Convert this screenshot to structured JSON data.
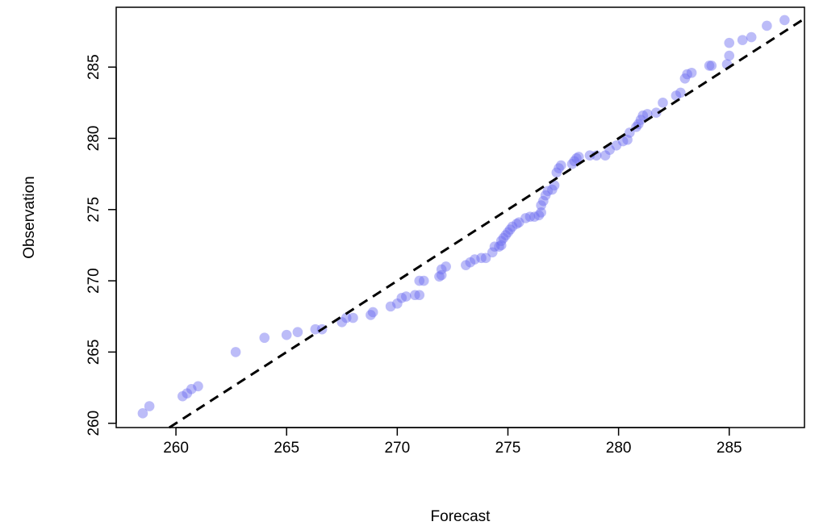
{
  "chart_data": {
    "type": "scatter",
    "xlabel": "Forecast",
    "ylabel": "Observation",
    "xlim": [
      257.3,
      288.4
    ],
    "ylim": [
      259.7,
      289.2
    ],
    "xticks": [
      260,
      265,
      270,
      275,
      280,
      285
    ],
    "yticks": [
      260,
      265,
      270,
      275,
      280,
      285
    ],
    "point_color": "#6b6bf0",
    "line_color": "#000000",
    "reference_line": {
      "type": "identity",
      "style": "dashed"
    },
    "series": [
      {
        "points": [
          [
            258.5,
            260.7
          ],
          [
            258.8,
            261.2
          ],
          [
            260.3,
            261.9
          ],
          [
            260.5,
            262.1
          ],
          [
            260.7,
            262.4
          ],
          [
            261.0,
            262.6
          ],
          [
            262.7,
            265.0
          ],
          [
            264.0,
            266.0
          ],
          [
            265.0,
            266.2
          ],
          [
            265.5,
            266.4
          ],
          [
            266.3,
            266.6
          ],
          [
            266.6,
            266.6
          ],
          [
            267.5,
            267.1
          ],
          [
            267.7,
            267.4
          ],
          [
            268.0,
            267.4
          ],
          [
            268.8,
            267.6
          ],
          [
            268.9,
            267.8
          ],
          [
            269.7,
            268.2
          ],
          [
            270.0,
            268.4
          ],
          [
            270.2,
            268.8
          ],
          [
            270.4,
            268.9
          ],
          [
            270.8,
            269.0
          ],
          [
            271.0,
            269.0
          ],
          [
            271.0,
            270.0
          ],
          [
            271.2,
            270.0
          ],
          [
            271.9,
            270.3
          ],
          [
            272.0,
            270.4
          ],
          [
            272.0,
            270.8
          ],
          [
            272.2,
            271.0
          ],
          [
            273.1,
            271.1
          ],
          [
            273.3,
            271.3
          ],
          [
            273.5,
            271.5
          ],
          [
            273.8,
            271.6
          ],
          [
            274.0,
            271.6
          ],
          [
            274.3,
            272.0
          ],
          [
            274.4,
            272.4
          ],
          [
            274.6,
            272.4
          ],
          [
            274.7,
            272.5
          ],
          [
            274.7,
            272.8
          ],
          [
            274.8,
            273.0
          ],
          [
            274.9,
            273.2
          ],
          [
            275.0,
            273.4
          ],
          [
            275.1,
            273.6
          ],
          [
            275.2,
            273.8
          ],
          [
            275.4,
            274.0
          ],
          [
            275.5,
            274.1
          ],
          [
            275.8,
            274.4
          ],
          [
            276.0,
            274.5
          ],
          [
            276.2,
            274.5
          ],
          [
            276.4,
            274.6
          ],
          [
            276.5,
            274.8
          ],
          [
            276.5,
            275.3
          ],
          [
            276.6,
            275.6
          ],
          [
            276.7,
            276.0
          ],
          [
            276.8,
            276.3
          ],
          [
            277.0,
            276.4
          ],
          [
            277.1,
            276.7
          ],
          [
            277.2,
            277.6
          ],
          [
            277.3,
            277.9
          ],
          [
            277.4,
            278.1
          ],
          [
            277.9,
            278.2
          ],
          [
            278.0,
            278.4
          ],
          [
            278.1,
            278.6
          ],
          [
            278.2,
            278.7
          ],
          [
            278.7,
            278.8
          ],
          [
            279.0,
            278.8
          ],
          [
            279.4,
            278.8
          ],
          [
            279.6,
            279.2
          ],
          [
            279.9,
            279.5
          ],
          [
            280.2,
            279.8
          ],
          [
            280.4,
            279.9
          ],
          [
            280.5,
            280.4
          ],
          [
            280.8,
            280.8
          ],
          [
            280.9,
            281.0
          ],
          [
            281.0,
            281.3
          ],
          [
            281.1,
            281.6
          ],
          [
            281.3,
            281.7
          ],
          [
            281.7,
            281.8
          ],
          [
            282.0,
            282.5
          ],
          [
            282.6,
            283.0
          ],
          [
            282.8,
            283.2
          ],
          [
            283.0,
            284.2
          ],
          [
            283.1,
            284.5
          ],
          [
            283.3,
            284.6
          ],
          [
            284.1,
            285.1
          ],
          [
            284.2,
            285.1
          ],
          [
            284.9,
            285.2
          ],
          [
            285.0,
            285.8
          ],
          [
            285.0,
            286.7
          ],
          [
            285.6,
            286.9
          ],
          [
            286.0,
            287.1
          ],
          [
            286.7,
            287.9
          ],
          [
            287.5,
            288.3
          ]
        ]
      }
    ]
  }
}
